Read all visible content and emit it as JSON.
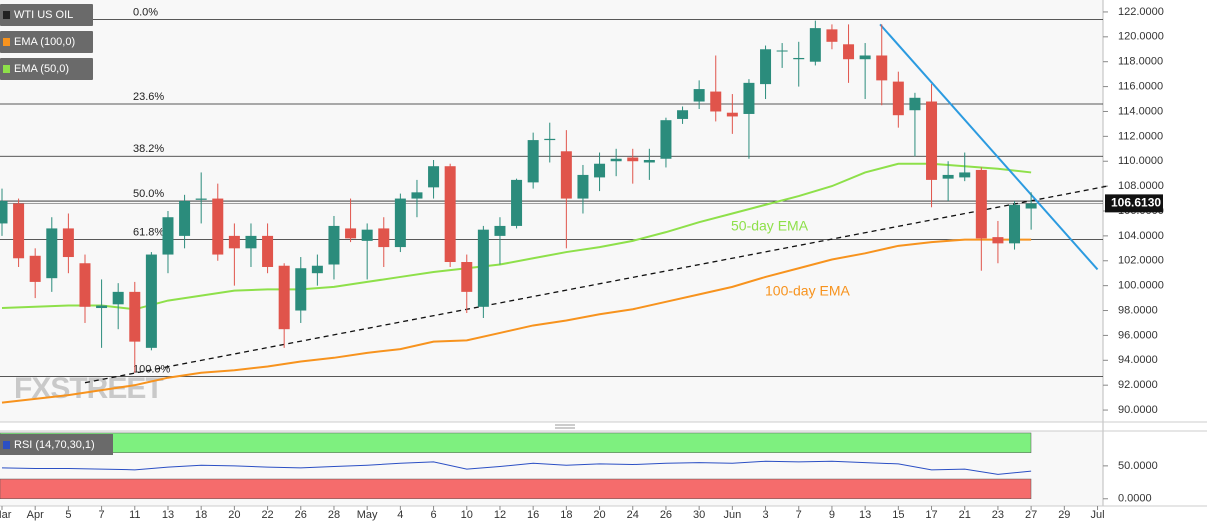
{
  "chart_data": [
    {
      "type": "candlestick",
      "xlim": [
        -0.12,
        66.33
      ],
      "xticks": [
        {
          "value": 0,
          "label": "Mar"
        },
        {
          "value": 2,
          "label": "Apr"
        },
        {
          "value": 4,
          "label": "5"
        },
        {
          "value": 6,
          "label": "7"
        },
        {
          "value": 8,
          "label": "11"
        },
        {
          "value": 10,
          "label": "13"
        },
        {
          "value": 12,
          "label": "18"
        },
        {
          "value": 14,
          "label": "20"
        },
        {
          "value": 16,
          "label": "22"
        },
        {
          "value": 18,
          "label": "26"
        },
        {
          "value": 20,
          "label": "28"
        },
        {
          "value": 22,
          "label": "May"
        },
        {
          "value": 24,
          "label": "4"
        },
        {
          "value": 26,
          "label": "6"
        },
        {
          "value": 28,
          "label": "10"
        },
        {
          "value": 30,
          "label": "12"
        },
        {
          "value": 32,
          "label": "16"
        },
        {
          "value": 34,
          "label": "18"
        },
        {
          "value": 36,
          "label": "20"
        },
        {
          "value": 38,
          "label": "24"
        },
        {
          "value": 40,
          "label": "26"
        },
        {
          "value": 42,
          "label": "30"
        },
        {
          "value": 44,
          "label": "Jun"
        },
        {
          "value": 46,
          "label": "3"
        },
        {
          "value": 48,
          "label": "7"
        },
        {
          "value": 50,
          "label": "9"
        },
        {
          "value": 52,
          "label": "13"
        },
        {
          "value": 54,
          "label": "15"
        },
        {
          "value": 56,
          "label": "17"
        },
        {
          "value": 58,
          "label": "21"
        },
        {
          "value": 60,
          "label": "23"
        },
        {
          "value": 62,
          "label": "27"
        },
        {
          "value": 64,
          "label": "29"
        },
        {
          "value": 66,
          "label": "Jul"
        }
      ],
      "ylim": [
        89.04,
        122.96
      ],
      "yticks": [
        {
          "value": 90,
          "label": "90.0000"
        },
        {
          "value": 92,
          "label": "92.0000"
        },
        {
          "value": 94,
          "label": "94.0000"
        },
        {
          "value": 96,
          "label": "96.0000"
        },
        {
          "value": 98,
          "label": "98.0000"
        },
        {
          "value": 100,
          "label": "100.0000"
        },
        {
          "value": 102,
          "label": "102.0000"
        },
        {
          "value": 104,
          "label": "104.0000"
        },
        {
          "value": 106,
          "label": "106.0000"
        },
        {
          "value": 108,
          "label": "108.0000"
        },
        {
          "value": 110,
          "label": "110.0000"
        },
        {
          "value": 112,
          "label": "112.0000"
        },
        {
          "value": 114,
          "label": "114.0000"
        },
        {
          "value": 116,
          "label": "116.0000"
        },
        {
          "value": 118,
          "label": "118.0000"
        },
        {
          "value": 120,
          "label": "120.0000"
        },
        {
          "value": 122,
          "label": "122.0000"
        }
      ],
      "candles": {
        "name": "WTI US OIL",
        "up_color": "#2b8c7c",
        "down_color": "#e0544b",
        "x": [
          0,
          1,
          2,
          3,
          4,
          5,
          6,
          7,
          8,
          9,
          10,
          11,
          12,
          13,
          14,
          15,
          16,
          17,
          18,
          19,
          20,
          21,
          22,
          23,
          24,
          25,
          26,
          27,
          28,
          29,
          30,
          31,
          32,
          33,
          34,
          35,
          36,
          37,
          38,
          39,
          40,
          41,
          42,
          43,
          44,
          45,
          46,
          47,
          48,
          49,
          50,
          51,
          52,
          53,
          54,
          55,
          56,
          57,
          58,
          59,
          60,
          61,
          62
        ],
        "open": [
          105,
          106.6,
          102.4,
          100.6,
          104.6,
          101.8,
          98.2,
          98.5,
          99.5,
          95,
          102.5,
          104,
          106.9,
          107,
          104,
          103,
          104,
          101.6,
          98,
          101,
          101.7,
          104.6,
          103.6,
          104.6,
          103.1,
          107,
          107.9,
          109.6,
          101.9,
          98.3,
          104,
          104.8,
          108.3,
          111.7,
          110.8,
          107,
          108.7,
          110,
          110.3,
          109.9,
          110.2,
          113.4,
          114.8,
          115.6,
          113.9,
          113.8,
          116.2,
          118.9,
          118.2,
          118,
          120.6,
          119.4,
          118.2,
          118.5,
          116.4,
          114.1,
          114.8,
          108.6,
          108.7,
          109.3,
          103.9,
          103.4,
          106.2
        ],
        "high": [
          107.8,
          107,
          103,
          105.5,
          105.8,
          102.5,
          100.5,
          100.2,
          100.3,
          102.7,
          106,
          107.3,
          109.1,
          108.2,
          105,
          105,
          105,
          101.8,
          102.3,
          102.5,
          105.6,
          107,
          105,
          105.5,
          107.4,
          108.5,
          110.1,
          109.8,
          102.5,
          104.8,
          105.5,
          108.6,
          112.3,
          113.1,
          112.5,
          109.7,
          110.7,
          111,
          111,
          111,
          113.5,
          114.4,
          116.5,
          118.5,
          115.4,
          116.6,
          119.3,
          119.5,
          119.6,
          121.3,
          121,
          121,
          119.5,
          121,
          117.2,
          115.5,
          116.2,
          110,
          110.7,
          109.5,
          105.2,
          106.8,
          107.5
        ],
        "low": [
          104,
          101.5,
          99,
          99.5,
          101,
          97,
          95,
          96.5,
          93,
          94.8,
          101,
          103,
          105,
          102,
          100,
          101.5,
          101,
          95,
          97,
          100,
          100.5,
          103.5,
          100.5,
          101.5,
          102.7,
          105.5,
          107,
          101.5,
          97.8,
          97.4,
          101.7,
          104.6,
          107.8,
          109.9,
          103,
          105.8,
          107.6,
          108.8,
          108.2,
          108.5,
          109.5,
          113,
          114.2,
          113.2,
          112.2,
          110.2,
          115,
          117.5,
          116,
          117.7,
          119,
          116.3,
          115,
          114.5,
          112.7,
          110.4,
          106.3,
          106.8,
          108.4,
          101.2,
          101.8,
          102.9,
          104.5
        ],
        "close": [
          106.8,
          102.2,
          100.3,
          104.6,
          102.3,
          98.3,
          98.4,
          99.5,
          95.5,
          102.5,
          105.5,
          106.8,
          107,
          102.5,
          103,
          104,
          101.5,
          96.5,
          101.4,
          101.6,
          104.8,
          103.8,
          104.5,
          103.1,
          107,
          107.5,
          109.6,
          101.9,
          99.5,
          104.5,
          104.8,
          108.5,
          111.7,
          111.8,
          107,
          108.9,
          109.8,
          110.2,
          110,
          110.1,
          113.3,
          114.1,
          115.8,
          114,
          113.6,
          116.3,
          119,
          118.9,
          118.3,
          120.7,
          119.6,
          118.2,
          118.5,
          116.5,
          113.7,
          115.1,
          108.5,
          108.9,
          109.1,
          103.8,
          103.4,
          106.5,
          106.6
        ]
      },
      "series": [
        {
          "name": "EMA (100,0)",
          "color": "#f7931e",
          "x": [
            0,
            2,
            4,
            6,
            8,
            10,
            12,
            14,
            16,
            18,
            20,
            22,
            24,
            26,
            28,
            30,
            32,
            34,
            36,
            38,
            40,
            42,
            44,
            46,
            48,
            50,
            52,
            54,
            56,
            58,
            60,
            62
          ],
          "values": [
            90.6,
            90.9,
            91.2,
            91.6,
            92.0,
            92.6,
            93.0,
            93.2,
            93.5,
            93.9,
            94.2,
            94.6,
            94.9,
            95.5,
            95.6,
            96.2,
            96.8,
            97.2,
            97.7,
            98.1,
            98.7,
            99.3,
            99.9,
            100.7,
            101.4,
            102.1,
            102.6,
            103.2,
            103.5,
            103.7,
            103.7,
            103.7
          ]
        },
        {
          "name": "EMA (50,0)",
          "color": "#8ee04a",
          "x": [
            0,
            2,
            4,
            6,
            8,
            10,
            12,
            14,
            16,
            18,
            20,
            22,
            24,
            26,
            28,
            30,
            32,
            34,
            36,
            38,
            40,
            42,
            44,
            46,
            48,
            50,
            52,
            54,
            56,
            58,
            60,
            62
          ],
          "values": [
            98.2,
            98.3,
            98.4,
            98.4,
            98.1,
            98.8,
            99.2,
            99.6,
            99.7,
            99.7,
            99.9,
            100.3,
            100.7,
            101.1,
            101.4,
            101.7,
            102.2,
            102.7,
            103.1,
            103.6,
            104.3,
            105.1,
            105.8,
            106.5,
            107.2,
            108.0,
            109.1,
            109.8,
            109.8,
            109.6,
            109.4,
            109.1
          ]
        }
      ],
      "fib_levels": [
        {
          "label": "0.0%",
          "value": 121.4
        },
        {
          "label": "23.6%",
          "value": 114.6
        },
        {
          "label": "38.2%",
          "value": 110.4
        },
        {
          "label": "50.0%",
          "value": 106.8
        },
        {
          "label": "61.8%",
          "value": 103.7
        },
        {
          "label": "100.0%",
          "value": 92.7
        }
      ],
      "trendlines": [
        {
          "style": "dashed",
          "color": "#111111",
          "x": [
            5,
            66.6
          ],
          "values": [
            92.2,
            108.0
          ]
        },
        {
          "style": "solid",
          "color": "#2c9be0",
          "x": [
            52.9,
            66
          ],
          "values": [
            121.0,
            101.3
          ]
        }
      ],
      "last_price": {
        "value": 106.613,
        "label": "106.6130"
      },
      "annotations": [
        "50-day EMA",
        "100-day EMA"
      ],
      "watermark": "FXSTREET"
    },
    {
      "type": "line",
      "title": "RSI (14,70,30,1)",
      "ylim": [
        -11,
        103
      ],
      "yticks": [
        {
          "value": 50,
          "label": "50.0000"
        },
        {
          "value": 0,
          "label": "0.0000"
        }
      ],
      "bands": [
        {
          "from": 70,
          "to": 100,
          "color": "#7ef07f"
        },
        {
          "from": 0,
          "to": 30,
          "color": "#f56c6c"
        }
      ],
      "series": [
        {
          "name": "RSI (14,70,30,1)",
          "color": "#2b4fc4",
          "x": [
            0,
            2,
            4,
            6,
            8,
            10,
            12,
            14,
            16,
            18,
            20,
            22,
            24,
            26,
            28,
            30,
            32,
            34,
            36,
            38,
            40,
            42,
            44,
            46,
            48,
            50,
            52,
            54,
            56,
            58,
            60,
            62
          ],
          "values": [
            47,
            46,
            46,
            45,
            44,
            48,
            51,
            50,
            48,
            47,
            49,
            51,
            54,
            56,
            45,
            49,
            54,
            51,
            53,
            52,
            54,
            55,
            54,
            57,
            56,
            57,
            55,
            53,
            44,
            45,
            37,
            42
          ]
        }
      ]
    }
  ]
}
